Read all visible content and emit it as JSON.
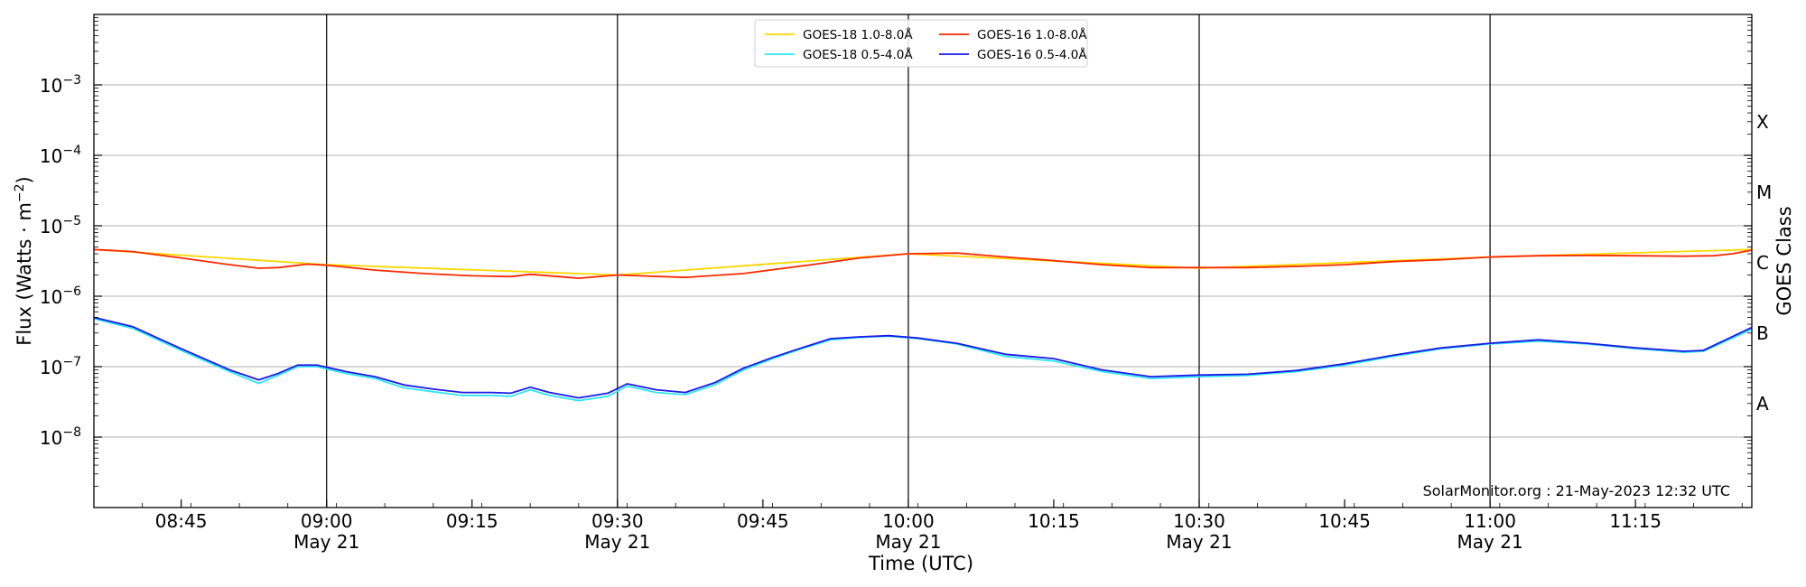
{
  "chart_data": {
    "type": "line",
    "x_scale": "time",
    "y_scale": "log",
    "xlim": [
      "08:36",
      "11:27"
    ],
    "ylim": [
      1e-09,
      0.01
    ],
    "grid": "horizontal at y ticks",
    "legend_placement": "top-center",
    "ylabel_parts": {
      "main": "Flux (Watts · m",
      "sup": "−2",
      "close": ")"
    },
    "xlabel": "Time (UTC)",
    "right_label": "GOES Class",
    "y_ticks": [
      {
        "value": 0.001,
        "base": "10",
        "exp": "−3"
      },
      {
        "value": 0.0001,
        "base": "10",
        "exp": "−4"
      },
      {
        "value": 1e-05,
        "base": "10",
        "exp": "−5"
      },
      {
        "value": 1e-06,
        "base": "10",
        "exp": "−6"
      },
      {
        "value": 1e-07,
        "base": "10",
        "exp": "−7"
      },
      {
        "value": 1e-08,
        "base": "10",
        "exp": "−8"
      }
    ],
    "x_ticks": [
      {
        "time": "08:45",
        "label": "08:45",
        "sublabel": ""
      },
      {
        "time": "09:00",
        "label": "09:00",
        "sublabel": "May 21"
      },
      {
        "time": "09:15",
        "label": "09:15",
        "sublabel": ""
      },
      {
        "time": "09:30",
        "label": "09:30",
        "sublabel": "May 21"
      },
      {
        "time": "09:45",
        "label": "09:45",
        "sublabel": ""
      },
      {
        "time": "10:00",
        "label": "10:00",
        "sublabel": "May 21"
      },
      {
        "time": "10:15",
        "label": "10:15",
        "sublabel": ""
      },
      {
        "time": "10:30",
        "label": "10:30",
        "sublabel": "May 21"
      },
      {
        "time": "10:45",
        "label": "10:45",
        "sublabel": ""
      },
      {
        "time": "11:00",
        "label": "11:00",
        "sublabel": "May 21"
      },
      {
        "time": "11:15",
        "label": "11:15",
        "sublabel": ""
      }
    ],
    "vertical_lines": [
      "09:00",
      "09:30",
      "10:00",
      "10:30",
      "11:00"
    ],
    "goes_classes": [
      {
        "label": "X",
        "value": 0.0003
      },
      {
        "label": "M",
        "value": 3e-05
      },
      {
        "label": "C",
        "value": 3e-06
      },
      {
        "label": "B",
        "value": 3e-07
      },
      {
        "label": "A",
        "value": 3e-08
      }
    ],
    "credit": "SolarMonitor.org : 21-May-2023 12:32 UTC",
    "series": [
      {
        "name": "GOES-18 1.0-8.0Å",
        "color": "#ffd700",
        "x": [
          "08:36",
          "09:00",
          "09:30",
          "10:00",
          "10:30",
          "11:00",
          "11:27"
        ],
        "y": [
          4.6e-06,
          2.8e-06,
          2e-06,
          4e-06,
          2.5e-06,
          3.6e-06,
          4.6e-06
        ]
      },
      {
        "name": "GOES-18 0.5-4.0Å",
        "color": "#2ee6f0",
        "x": [
          "08:36",
          "08:40",
          "08:45",
          "08:50",
          "08:53",
          "08:55",
          "08:57",
          "08:59",
          "09:02",
          "09:05",
          "09:08",
          "09:11",
          "09:14",
          "09:17",
          "09:19",
          "09:21",
          "09:23",
          "09:26",
          "09:29",
          "09:31",
          "09:34",
          "09:37",
          "09:40",
          "09:43",
          "09:46",
          "09:49",
          "09:52",
          "09:55",
          "09:58",
          "10:01",
          "10:05",
          "10:10",
          "10:15",
          "10:20",
          "10:25",
          "10:30",
          "10:35",
          "10:40",
          "10:45",
          "10:50",
          "10:55",
          "11:00",
          "11:05",
          "11:10",
          "11:15",
          "11:20",
          "11:22",
          "11:24",
          "11:27"
        ],
        "y": [
          4.8e-07,
          3.5e-07,
          1.7e-07,
          8.5e-08,
          5.8e-08,
          7.5e-08,
          1e-07,
          1e-07,
          8e-08,
          6.8e-08,
          5e-08,
          4.4e-08,
          3.9e-08,
          3.9e-08,
          3.8e-08,
          4.7e-08,
          3.9e-08,
          3.3e-08,
          3.8e-08,
          5.3e-08,
          4.3e-08,
          4e-08,
          5.5e-08,
          9e-08,
          1.3e-07,
          1.8e-07,
          2.4e-07,
          2.6e-07,
          2.7e-07,
          2.5e-07,
          2.1e-07,
          1.4e-07,
          1.2e-07,
          8.5e-08,
          6.8e-08,
          7.2e-08,
          7.5e-08,
          8.5e-08,
          1.05e-07,
          1.4e-07,
          1.8e-07,
          2.1e-07,
          2.3e-07,
          2.1e-07,
          1.8e-07,
          1.6e-07,
          1.65e-07,
          2.2e-07,
          3.4e-07
        ]
      },
      {
        "name": "GOES-16 1.0-8.0Å",
        "color": "#ff2a00",
        "x": [
          "08:36",
          "08:40",
          "08:45",
          "08:50",
          "08:53",
          "08:55",
          "08:58",
          "09:00",
          "09:05",
          "09:10",
          "09:15",
          "09:19",
          "09:21",
          "09:26",
          "09:30",
          "09:37",
          "09:43",
          "09:50",
          "09:55",
          "10:00",
          "10:05",
          "10:10",
          "10:15",
          "10:20",
          "10:25",
          "10:30",
          "10:35",
          "10:40",
          "10:45",
          "10:50",
          "10:55",
          "11:00",
          "11:05",
          "11:10",
          "11:15",
          "11:20",
          "11:23",
          "11:25",
          "11:27"
        ],
        "y": [
          4.6e-06,
          4.3e-06,
          3.5e-06,
          2.8e-06,
          2.5e-06,
          2.55e-06,
          2.85e-06,
          2.75e-06,
          2.35e-06,
          2.1e-06,
          1.95e-06,
          1.9e-06,
          2.05e-06,
          1.8e-06,
          2e-06,
          1.85e-06,
          2.1e-06,
          2.8e-06,
          3.5e-06,
          4e-06,
          4.1e-06,
          3.6e-06,
          3.2e-06,
          2.8e-06,
          2.55e-06,
          2.55e-06,
          2.55e-06,
          2.65e-06,
          2.8e-06,
          3.1e-06,
          3.3e-06,
          3.6e-06,
          3.75e-06,
          3.8e-06,
          3.75e-06,
          3.7e-06,
          3.75e-06,
          4e-06,
          4.5e-06
        ]
      },
      {
        "name": "GOES-16 0.5-4.0Å",
        "color": "#1a1ae6",
        "x": [
          "08:36",
          "08:40",
          "08:45",
          "08:50",
          "08:53",
          "08:55",
          "08:57",
          "08:59",
          "09:02",
          "09:05",
          "09:08",
          "09:11",
          "09:14",
          "09:17",
          "09:19",
          "09:21",
          "09:23",
          "09:26",
          "09:29",
          "09:31",
          "09:34",
          "09:37",
          "09:40",
          "09:43",
          "09:46",
          "09:49",
          "09:52",
          "09:55",
          "09:58",
          "10:01",
          "10:05",
          "10:10",
          "10:15",
          "10:20",
          "10:25",
          "10:30",
          "10:35",
          "10:40",
          "10:45",
          "10:50",
          "10:55",
          "11:00",
          "11:05",
          "11:10",
          "11:15",
          "11:20",
          "11:22",
          "11:24",
          "11:27"
        ],
        "y": [
          5e-07,
          3.7e-07,
          1.8e-07,
          9e-08,
          6.5e-08,
          8e-08,
          1.05e-07,
          1.05e-07,
          8.5e-08,
          7.2e-08,
          5.5e-08,
          4.8e-08,
          4.3e-08,
          4.3e-08,
          4.2e-08,
          5.1e-08,
          4.3e-08,
          3.6e-08,
          4.2e-08,
          5.7e-08,
          4.7e-08,
          4.3e-08,
          5.9e-08,
          9.5e-08,
          1.35e-07,
          1.85e-07,
          2.5e-07,
          2.65e-07,
          2.75e-07,
          2.55e-07,
          2.15e-07,
          1.5e-07,
          1.3e-07,
          9e-08,
          7.2e-08,
          7.6e-08,
          7.8e-08,
          8.8e-08,
          1.1e-07,
          1.45e-07,
          1.85e-07,
          2.15e-07,
          2.4e-07,
          2.15e-07,
          1.85e-07,
          1.65e-07,
          1.7e-07,
          2.3e-07,
          3.6e-07
        ]
      }
    ]
  }
}
